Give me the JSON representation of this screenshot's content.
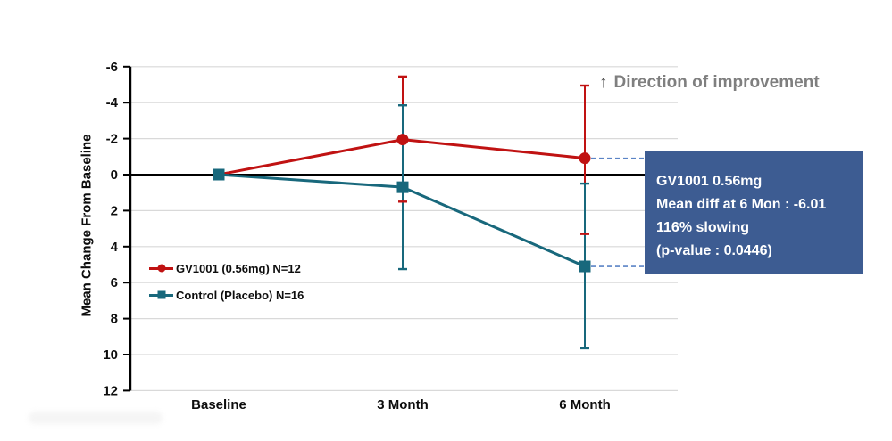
{
  "colors": {
    "series_red": "#c01212",
    "series_teal": "#18687c",
    "annotation_bg": "#3d5c92",
    "annotation_text": "#ffffff",
    "connector_blue": "#5b84c6",
    "grid": "#d9d9d9",
    "axis": "#000000",
    "direction_text": "#7f7f7f"
  },
  "direction_note": {
    "arrow": "↑",
    "text": "Direction of improvement"
  },
  "annotation": {
    "lines": [
      "GV1001 0.56mg",
      "Mean diff at 6 Mon : -6.01",
      "116% slowing",
      "(p-value : 0.0446)"
    ]
  },
  "chart_data": {
    "type": "line",
    "title": "",
    "ylabel": "Mean Change From Baseline",
    "xlabel": "",
    "categories": [
      "Baseline",
      "3 Month",
      "6 Month"
    ],
    "yticks": [
      -6,
      -4,
      -2,
      0,
      2,
      4,
      6,
      8,
      10,
      12
    ],
    "ylim": [
      -6,
      12
    ],
    "y_inverted": true,
    "grid": true,
    "legend_position": "inside-left",
    "series": [
      {
        "name": "GV1001 (0.56mg) N=12",
        "marker": "circle",
        "color_key": "series_red",
        "values": [
          0,
          -1.95,
          -0.91
        ],
        "error_min": [
          null,
          -5.45,
          -4.95
        ],
        "error_max": [
          null,
          1.5,
          3.3
        ]
      },
      {
        "name": "Control (Placebo) N=16",
        "marker": "square",
        "color_key": "series_teal",
        "values": [
          0,
          0.7,
          5.1
        ],
        "error_min": [
          null,
          -3.85,
          0.5
        ],
        "error_max": [
          null,
          5.25,
          9.65
        ]
      }
    ],
    "connectors": [
      {
        "series": 0,
        "point": 2,
        "label": "red-to-annotation"
      },
      {
        "series": 1,
        "point": 2,
        "label": "teal-to-annotation"
      }
    ]
  }
}
